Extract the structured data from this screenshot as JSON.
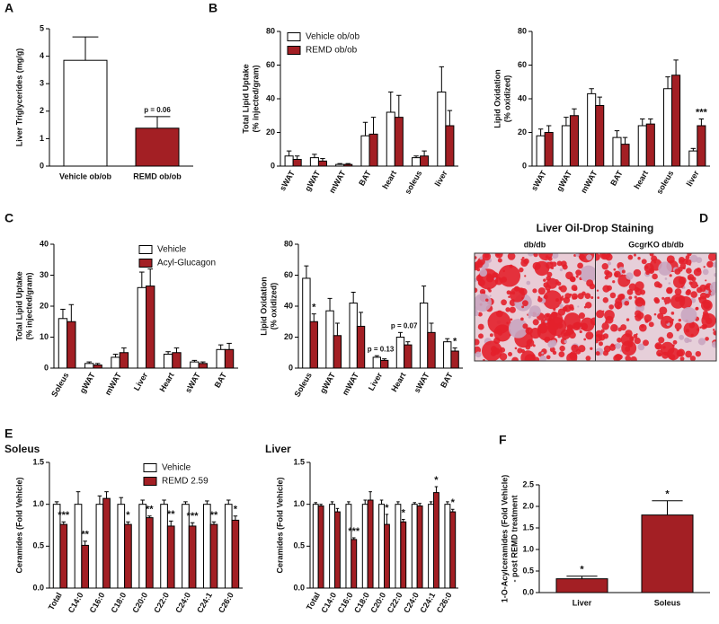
{
  "panel_labels": [
    "A",
    "B",
    "C",
    "D",
    "E",
    "F"
  ],
  "image_panel": {
    "title": "Liver Oil-Drop Staining",
    "labels": [
      "db/db",
      "GcgrKO db/db"
    ]
  },
  "chart_data": [
    {
      "type": "bar",
      "ylabel": "Liver Triglycerides (mg/g)",
      "categories": [
        "Vehicle ob/ob",
        "REMD ob/ob"
      ],
      "values": [
        3.85,
        1.38
      ],
      "errors": [
        0.85,
        0.42
      ],
      "colors": [
        "#ffffff",
        "#a31f24"
      ],
      "ylim": [
        0,
        5
      ],
      "yticks": [
        0,
        1,
        2,
        3,
        4,
        5
      ],
      "annotations": [
        {
          "text": "p = 0.06",
          "category": "REMD ob/ob"
        }
      ]
    },
    {
      "type": "bar",
      "ylabel": [
        "Total Lipid Uptake",
        "(% injected/gram)"
      ],
      "categories": [
        "sWAT",
        "gWAT",
        "mWAT",
        "BAT",
        "heart",
        "soleus",
        "liver"
      ],
      "series": [
        {
          "name": "Vehicle ob/ob",
          "color": "#ffffff",
          "values": [
            6,
            5,
            1,
            18,
            32,
            5,
            44
          ],
          "errors": [
            3,
            2,
            0.5,
            8,
            12,
            1,
            15
          ]
        },
        {
          "name": "REMD ob/ob",
          "color": "#a31f24",
          "values": [
            4,
            3,
            1,
            19,
            29,
            6,
            24
          ],
          "errors": [
            2,
            1.5,
            0.5,
            10,
            13,
            3,
            9
          ]
        }
      ],
      "ylim": [
        0,
        80
      ],
      "yticks": [
        0,
        20,
        40,
        60,
        80
      ],
      "legend": "upper left"
    },
    {
      "type": "bar",
      "ylabel": [
        "Lipid Oxidation",
        "(% oxidized)"
      ],
      "categories": [
        "sWAT",
        "gWAT",
        "mWAT",
        "BAT",
        "heart",
        "soleus",
        "liver"
      ],
      "series": [
        {
          "name": "Vehicle ob/ob",
          "color": "#ffffff",
          "values": [
            18,
            24,
            43,
            17,
            24,
            46,
            9
          ],
          "errors": [
            4,
            5,
            3,
            4,
            4,
            7,
            1.5
          ]
        },
        {
          "name": "REMD ob/ob",
          "color": "#a31f24",
          "values": [
            20,
            30,
            36,
            13,
            25,
            54,
            24
          ],
          "errors": [
            4,
            4,
            5,
            4,
            3,
            9,
            4
          ]
        }
      ],
      "ylim": [
        0,
        80
      ],
      "yticks": [
        0,
        20,
        40,
        60,
        80
      ],
      "annotations": [
        {
          "text": "***",
          "category": "liver",
          "series": "REMD ob/ob"
        }
      ]
    },
    {
      "type": "bar",
      "ylabel": [
        "Total Lipid Uptake",
        "(% injected/gram)"
      ],
      "categories": [
        "Soleus",
        "gWAT",
        "mWAT",
        "Liver",
        "Heart",
        "sWAT",
        "BAT"
      ],
      "series": [
        {
          "name": "Vehicle",
          "color": "#ffffff",
          "values": [
            16,
            1.5,
            3.5,
            26,
            4.5,
            2,
            6
          ],
          "errors": [
            3,
            0.5,
            1,
            5,
            0.8,
            0.5,
            1.5
          ]
        },
        {
          "name": "Acyl-Glucagon",
          "color": "#a31f24",
          "values": [
            15,
            1,
            5,
            26.5,
            5,
            1.5,
            6
          ],
          "errors": [
            5.5,
            0.5,
            1.5,
            5.5,
            1.5,
            0.5,
            2
          ]
        }
      ],
      "ylim": [
        0,
        40
      ],
      "yticks": [
        0,
        10,
        20,
        30,
        40
      ],
      "legend": "upper right"
    },
    {
      "type": "bar",
      "ylabel": [
        "Lipid Oxidation",
        "(% oxidized)"
      ],
      "categories": [
        "Soleus",
        "gWAT",
        "mWAT",
        "Liver",
        "Heart",
        "sWAT",
        "BAT"
      ],
      "series": [
        {
          "name": "Vehicle",
          "color": "#ffffff",
          "values": [
            58,
            37,
            42,
            7,
            20,
            42,
            17
          ],
          "errors": [
            8,
            8,
            7,
            1,
            3,
            11,
            2
          ]
        },
        {
          "name": "Acyl-Glucagon",
          "color": "#a31f24",
          "values": [
            30,
            21,
            27,
            5,
            15,
            23,
            11
          ],
          "errors": [
            5,
            8,
            9,
            1,
            2,
            6,
            2
          ]
        }
      ],
      "ylim": [
        0,
        80
      ],
      "yticks": [
        0,
        20,
        40,
        60,
        80
      ],
      "annotations": [
        {
          "text": "*",
          "category": "Soleus",
          "series": "Acyl-Glucagon"
        },
        {
          "text": "p = 0.13",
          "category": "Liver"
        },
        {
          "text": "p = 0.07",
          "category": "Heart"
        },
        {
          "text": "*",
          "category": "BAT",
          "series": "Acyl-Glucagon"
        }
      ]
    },
    {
      "type": "bar",
      "title": "Soleus",
      "ylabel": "Ceramides (Fold Vehicle)",
      "categories": [
        "Total",
        "C14:0",
        "C16:0",
        "C18:0",
        "C20:0",
        "C22:0",
        "C24:0",
        "C24:1",
        "C26:0"
      ],
      "series": [
        {
          "name": "Vehicle",
          "color": "#ffffff",
          "values": [
            1,
            1,
            1,
            1,
            1,
            1,
            1,
            1,
            1
          ],
          "errors": [
            0.03,
            0.15,
            0.1,
            0.08,
            0.05,
            0.05,
            0.03,
            0.04,
            0.05
          ]
        },
        {
          "name": "REMD 2.59",
          "color": "#a31f24",
          "values": [
            0.76,
            0.51,
            1.07,
            0.76,
            0.84,
            0.74,
            0.74,
            0.76,
            0.81
          ],
          "errors": [
            0.03,
            0.05,
            0.08,
            0.03,
            0.02,
            0.06,
            0.04,
            0.03,
            0.05
          ]
        }
      ],
      "ylim": [
        0,
        1.5
      ],
      "yticks": [
        {
          "value": 0,
          "label": "0.0"
        },
        0.5,
        {
          "value": 1,
          "label": "1.0"
        },
        1.5
      ],
      "legend": "upper right",
      "annotations": [
        {
          "text": "***",
          "category": "Total",
          "series": "REMD 2.59"
        },
        {
          "text": "**",
          "category": "C14:0",
          "series": "REMD 2.59"
        },
        {
          "text": "*",
          "category": "C18:0",
          "series": "REMD 2.59"
        },
        {
          "text": "**",
          "category": "C20:0",
          "series": "REMD 2.59"
        },
        {
          "text": "**",
          "category": "C22:0",
          "series": "REMD 2.59"
        },
        {
          "text": "***",
          "category": "C24:0",
          "series": "REMD 2.59"
        },
        {
          "text": "**",
          "category": "C24:1",
          "series": "REMD 2.59"
        },
        {
          "text": "*",
          "category": "C26:0",
          "series": "REMD 2.59"
        }
      ]
    },
    {
      "type": "bar",
      "title": "Liver",
      "ylabel": "Ceramides (Fold Vehicle)",
      "categories": [
        "Total",
        "C14:0",
        "C16:0",
        "C18:0",
        "C20:0",
        "C22:0",
        "C24:0",
        "C24:1",
        "C26:0"
      ],
      "series": [
        {
          "name": "Vehicle",
          "color": "#ffffff",
          "values": [
            1,
            1,
            1,
            1,
            1,
            1,
            1,
            1,
            1
          ],
          "errors": [
            0.02,
            0.03,
            0.03,
            0.05,
            0.05,
            0.03,
            0.02,
            0.03,
            0.03
          ]
        },
        {
          "name": "REMD 2.59",
          "color": "#a31f24",
          "values": [
            0.98,
            0.91,
            0.58,
            1.05,
            0.76,
            0.79,
            0.98,
            1.14,
            0.91
          ],
          "errors": [
            0.02,
            0.04,
            0.02,
            0.1,
            0.12,
            0.03,
            0.03,
            0.07,
            0.03
          ]
        }
      ],
      "ylim": [
        0,
        1.5
      ],
      "yticks": [
        {
          "value": 0,
          "label": "0.0"
        },
        0.5,
        {
          "value": 1,
          "label": "1.0"
        },
        1.5
      ],
      "annotations": [
        {
          "text": "***",
          "category": "C16:0",
          "series": "REMD 2.59"
        },
        {
          "text": "*",
          "category": "C20:0",
          "series": "REMD 2.59"
        },
        {
          "text": "*",
          "category": "C22:0",
          "series": "REMD 2.59"
        },
        {
          "text": "*",
          "category": "C24:1",
          "series": "REMD 2.59"
        },
        {
          "text": "*",
          "category": "C26:0",
          "series": "REMD 2.59"
        }
      ]
    },
    {
      "type": "bar",
      "ylabel": [
        "1-O-Acylceramides (Fold Vehicle)",
        "- post REMD treatment"
      ],
      "categories": [
        "Liver",
        "Soleus"
      ],
      "values": [
        0.32,
        1.8
      ],
      "errors": [
        0.06,
        0.33
      ],
      "color": "#a31f24",
      "ylim": [
        0,
        2.5
      ],
      "yticks": [
        {
          "value": 0,
          "label": "0.0"
        },
        0.5,
        {
          "value": 1,
          "label": "1.0"
        },
        1.5,
        {
          "value": 2,
          "label": "2.0"
        },
        2.5
      ],
      "annotations": [
        {
          "text": "*",
          "category": "Liver"
        },
        {
          "text": "*",
          "category": "Soleus"
        }
      ]
    }
  ]
}
